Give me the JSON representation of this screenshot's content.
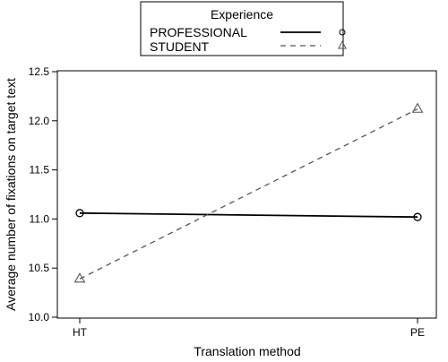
{
  "chart_data": {
    "type": "line",
    "legend": {
      "title": "Experience",
      "placement": "top-center",
      "entries": [
        {
          "label": "PROFESSIONAL",
          "line_style": "solid",
          "marker": "circle"
        },
        {
          "label": "STUDENT",
          "line_style": "dashed",
          "marker": "triangle"
        }
      ]
    },
    "xlabel": "Translation method",
    "ylabel": "Average number of fixations on target text",
    "categories": [
      "HT",
      "PE"
    ],
    "yticks": [
      "10.0",
      "10.5",
      "11.0",
      "11.5",
      "12.0",
      "12.5"
    ],
    "ylim": [
      10.0,
      12.5
    ],
    "grid": false,
    "series": [
      {
        "name": "PROFESSIONAL",
        "values": [
          11.06,
          11.02
        ],
        "line_style": "solid",
        "marker": "circle",
        "color": "#000000"
      },
      {
        "name": "STUDENT",
        "values": [
          10.39,
          12.12
        ],
        "line_style": "dashed",
        "marker": "triangle",
        "color": "#555555"
      }
    ]
  }
}
